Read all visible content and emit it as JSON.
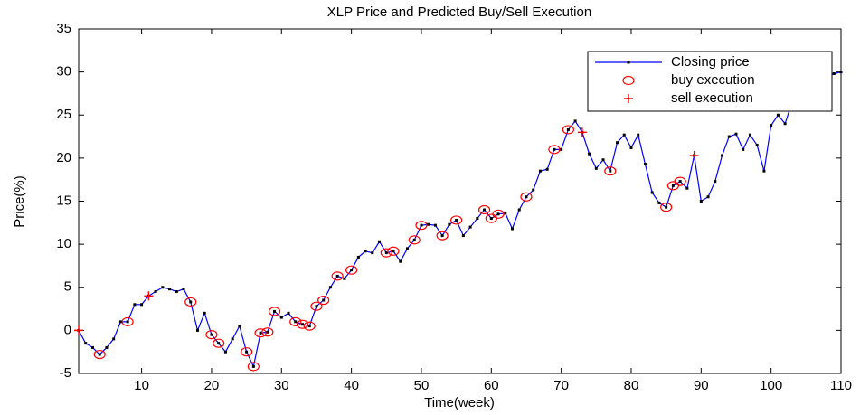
{
  "chart_data": {
    "type": "line",
    "title": "XLP Price and Predicted Buy/Sell Execution",
    "x_label": "Time(week)",
    "y_label": "Price(%)",
    "xlim": [
      1,
      110
    ],
    "ylim": [
      -5,
      35
    ],
    "xticks": [
      10,
      20,
      30,
      40,
      50,
      60,
      70,
      80,
      90,
      100,
      110
    ],
    "yticks": [
      -5,
      0,
      5,
      10,
      15,
      20,
      25,
      30,
      35
    ],
    "legend": "upper right",
    "series": [
      {
        "name": "Closing price",
        "color": "#0000ff",
        "marker": "dot",
        "x": [
          1,
          2,
          3,
          4,
          5,
          6,
          7,
          8,
          9,
          10,
          11,
          12,
          13,
          14,
          15,
          16,
          17,
          18,
          19,
          20,
          21,
          22,
          23,
          24,
          25,
          26,
          27,
          28,
          29,
          30,
          31,
          32,
          33,
          34,
          35,
          36,
          37,
          38,
          39,
          40,
          41,
          42,
          43,
          44,
          45,
          46,
          47,
          48,
          49,
          50,
          51,
          52,
          53,
          54,
          55,
          56,
          57,
          58,
          59,
          60,
          61,
          62,
          63,
          64,
          65,
          66,
          67,
          68,
          69,
          70,
          71,
          72,
          73,
          74,
          75,
          76,
          77,
          78,
          79,
          80,
          81,
          82,
          83,
          84,
          85,
          86,
          87,
          88,
          89,
          90,
          91,
          92,
          93,
          94,
          95,
          96,
          97,
          98,
          99,
          100,
          101,
          102,
          103,
          104,
          105,
          106,
          107,
          108,
          109,
          110
        ],
        "values": [
          0,
          -1.5,
          -2,
          -2.8,
          -2,
          -1,
          1,
          1,
          3,
          3,
          4,
          4.5,
          5,
          4.8,
          4.5,
          4.8,
          3.3,
          0,
          2,
          -0.5,
          -1.5,
          -2.5,
          -1,
          0.5,
          -2.5,
          -4.2,
          -0.3,
          -0.2,
          2.2,
          1.5,
          2,
          1,
          0.7,
          0.5,
          2.8,
          3.5,
          5,
          6.3,
          6,
          7,
          8.5,
          9.2,
          9,
          10.3,
          9,
          9.2,
          8,
          9.5,
          10.5,
          12.2,
          12.3,
          12.2,
          11,
          12.3,
          12.8,
          11,
          12,
          13,
          14,
          13,
          13.5,
          13.6,
          11.8,
          14,
          15.5,
          16.3,
          18.5,
          18.7,
          21,
          21,
          23.3,
          24.3,
          23,
          20.5,
          18.8,
          19.8,
          18.5,
          21.8,
          22.7,
          21.2,
          22.7,
          19.3,
          16,
          14.8,
          14.3,
          16.8,
          17.3,
          16.5,
          20.3,
          15,
          15.5,
          17.3,
          20.3,
          22.5,
          22.8,
          21,
          22.7,
          21.5,
          18.5,
          23.8,
          25,
          24,
          26.5,
          27,
          28,
          28.5,
          29,
          29.5,
          29.8,
          30
        ]
      },
      {
        "name": "buy execution",
        "color": "#ff0000",
        "marker": "circle",
        "x": [
          4,
          8,
          17,
          20,
          21,
          25,
          26,
          27,
          28,
          29,
          32,
          33,
          34,
          35,
          36,
          38,
          40,
          45,
          46,
          49,
          50,
          53,
          55,
          59,
          60,
          61,
          65,
          69,
          71,
          77,
          85,
          86,
          87
        ],
        "values": [
          -2.8,
          1,
          3.3,
          -0.5,
          -1.5,
          -2.5,
          -4.2,
          -0.3,
          -0.2,
          2.2,
          1,
          0.7,
          0.5,
          2.8,
          3.5,
          6.3,
          7,
          9,
          9.2,
          10.5,
          12.2,
          11,
          12.8,
          14,
          13,
          13.5,
          15.5,
          21,
          23.3,
          18.5,
          14.3,
          16.8,
          17.3
        ]
      },
      {
        "name": "sell execution",
        "color": "#ff0000",
        "marker": "plus",
        "x": [
          1,
          11,
          73,
          89
        ],
        "values": [
          0,
          4,
          23,
          20.3
        ]
      }
    ]
  }
}
